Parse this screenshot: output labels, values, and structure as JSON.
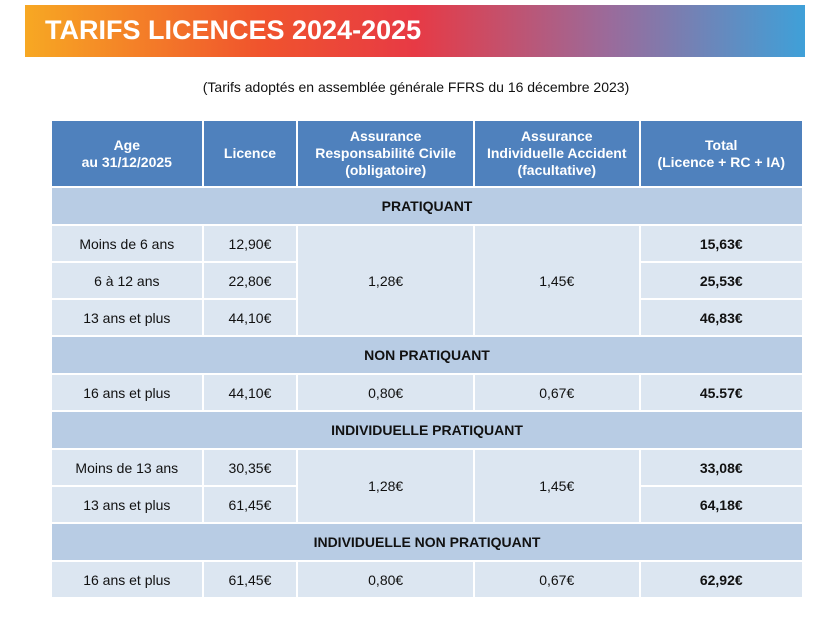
{
  "header": {
    "title": "TARIFS LICENCES 2024-2025"
  },
  "subtitle": "(Tarifs adoptés en assemblée générale FFRS du 16 décembre 2023)",
  "table": {
    "columns": [
      [
        "Age",
        "au 31/12/2025"
      ],
      [
        "Licence"
      ],
      [
        "Assurance",
        "Responsabilité Civile",
        "(obligatoire)"
      ],
      [
        "Assurance",
        "Individuelle Accident",
        "(facultative)"
      ],
      [
        "Total",
        "(Licence + RC + IA)"
      ]
    ],
    "sections": [
      {
        "title": "PRATIQUANT",
        "rc": "1,28€",
        "ia": "1,45€",
        "rows": [
          {
            "age": "Moins de 6 ans",
            "licence": "12,90€",
            "total": "15,63€"
          },
          {
            "age": "6 à 12 ans",
            "licence": "22,80€",
            "total": "25,53€"
          },
          {
            "age": "13 ans et plus",
            "licence": "44,10€",
            "total": "46,83€"
          }
        ]
      },
      {
        "title": "NON PRATIQUANT",
        "rc": "0,80€",
        "ia": "0,67€",
        "rows": [
          {
            "age": "16 ans et plus",
            "licence": "44,10€",
            "total": "45.57€"
          }
        ]
      },
      {
        "title": "INDIVIDUELLE PRATIQUANT",
        "rc": "1,28€",
        "ia": "1,45€",
        "rows": [
          {
            "age": "Moins de 13 ans",
            "licence": "30,35€",
            "total": "33,08€"
          },
          {
            "age": "13 ans et plus",
            "licence": "61,45€",
            "total": "64,18€"
          }
        ]
      },
      {
        "title": "INDIVIDUELLE NON PRATIQUANT",
        "rc": "0,80€",
        "ia": "0,67€",
        "rows": [
          {
            "age": "16 ans et plus",
            "licence": "61,45€",
            "total": "62,92€"
          }
        ]
      }
    ]
  }
}
